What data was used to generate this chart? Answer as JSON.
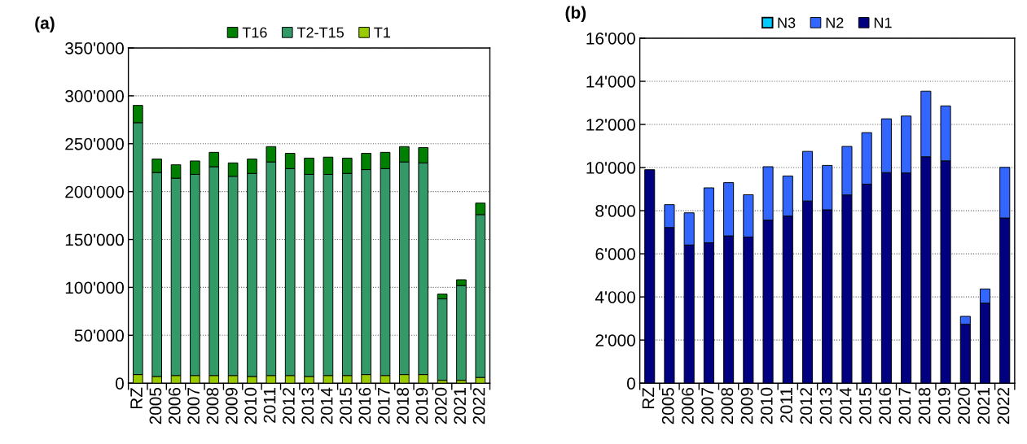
{
  "chart_data": [
    {
      "type": "bar",
      "title": "(a)",
      "stacked": true,
      "legend": "top",
      "grid": "y",
      "categories": [
        "RZ",
        "2005",
        "2006",
        "2007",
        "2008",
        "2009",
        "2010",
        "2011",
        "2012",
        "2013",
        "2014",
        "2015",
        "2016",
        "2017",
        "2018",
        "2019",
        "2020",
        "2021",
        "2022"
      ],
      "series": [
        {
          "name": "T1",
          "color": "#99cc00",
          "values": [
            9000,
            7000,
            8000,
            8000,
            8000,
            8000,
            7000,
            8000,
            8000,
            7000,
            8000,
            8000,
            9000,
            8000,
            9000,
            9000,
            3000,
            3000,
            6000
          ]
        },
        {
          "name": "T2-T15",
          "color": "#339966",
          "values": [
            263000,
            213000,
            206000,
            210000,
            218000,
            208000,
            212000,
            223000,
            216000,
            211000,
            210000,
            211000,
            214000,
            216000,
            222000,
            221000,
            85000,
            99000,
            170000
          ]
        },
        {
          "name": "T16",
          "color": "#008000",
          "values": [
            18000,
            14000,
            14000,
            14000,
            15000,
            14000,
            15000,
            16000,
            16000,
            17000,
            18000,
            16000,
            17000,
            17000,
            16000,
            16000,
            5000,
            6000,
            12000
          ]
        }
      ],
      "ylim": [
        0,
        350000
      ],
      "yticks": [
        {
          "value": 0,
          "label": "0"
        },
        {
          "value": 50000,
          "label": "50'000"
        },
        {
          "value": 100000,
          "label": "100'000"
        },
        {
          "value": 150000,
          "label": "150'000"
        },
        {
          "value": 200000,
          "label": "200'000"
        },
        {
          "value": 250000,
          "label": "250'000"
        },
        {
          "value": 300000,
          "label": "300'000"
        },
        {
          "value": 350000,
          "label": "350'000"
        }
      ]
    },
    {
      "type": "bar",
      "title": "(b)",
      "stacked": true,
      "legend": "top",
      "grid": "y",
      "categories": [
        "RZ",
        "2005",
        "2006",
        "2007",
        "2008",
        "2009",
        "2010",
        "2011",
        "2012",
        "2013",
        "2014",
        "2015",
        "2016",
        "2017",
        "2018",
        "2019",
        "2020",
        "2021",
        "2022"
      ],
      "series": [
        {
          "name": "N1",
          "color": "#000080",
          "values": [
            9900,
            7220,
            6410,
            6510,
            6830,
            6780,
            7560,
            7750,
            8450,
            8040,
            8730,
            9230,
            9770,
            9750,
            10500,
            10310,
            2730,
            3710,
            7660
          ]
        },
        {
          "name": "N2",
          "color": "#3366ff",
          "values": [
            null,
            1060,
            1490,
            2550,
            2470,
            1960,
            2480,
            1860,
            2300,
            2060,
            2250,
            2390,
            2490,
            2640,
            3040,
            2550,
            370,
            660,
            2350
          ]
        },
        {
          "name": "N3",
          "color": "#00ccff",
          "values": [
            null,
            null,
            null,
            null,
            null,
            null,
            null,
            null,
            null,
            null,
            null,
            null,
            null,
            null,
            null,
            null,
            null,
            null,
            null
          ]
        }
      ],
      "ylim": [
        0,
        16000
      ],
      "yticks": [
        {
          "value": 0,
          "label": "0"
        },
        {
          "value": 2000,
          "label": "2'000"
        },
        {
          "value": 4000,
          "label": "4'000"
        },
        {
          "value": 6000,
          "label": "6'000"
        },
        {
          "value": 8000,
          "label": "8'000"
        },
        {
          "value": 10000,
          "label": "10'000"
        },
        {
          "value": 12000,
          "label": "12'000"
        },
        {
          "value": 14000,
          "label": "14'000"
        },
        {
          "value": 16000,
          "label": "16'000"
        }
      ]
    }
  ]
}
